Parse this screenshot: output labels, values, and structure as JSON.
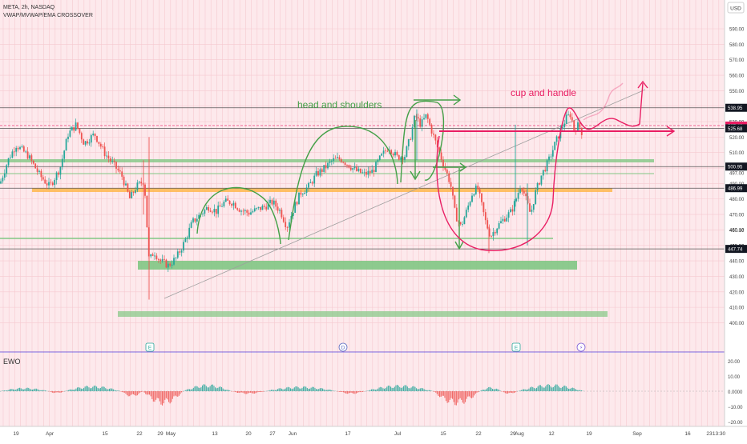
{
  "header": {
    "symbol_line": "META, 2h, NASDAQ",
    "indicator_line": "VWAP/MVWAP/EMA CROSSOVER",
    "currency": "USD"
  },
  "annotations": {
    "head_and_shoulders": "head and shoulders",
    "cup_and_handle": "cup and handle"
  },
  "indicator": {
    "name": "EWO",
    "axis_ticks": [
      "20.00",
      "10.00",
      "0.0000",
      "−10.00",
      "−20.00"
    ]
  },
  "colors": {
    "up": "#26a69a",
    "down": "#ef5350",
    "pen_green": "#43a047",
    "pen_red": "#e91e63",
    "zone_green": "#81c784",
    "zone_orange": "#ffb74d",
    "label_bg": "#131722"
  },
  "chart_data": {
    "type": "candlestick",
    "price_axis": {
      "ticks": [
        590,
        580,
        570,
        560,
        550,
        540,
        530,
        520,
        510,
        500,
        490,
        480,
        470,
        460,
        450,
        440,
        430,
        420,
        410,
        400
      ],
      "tick_labels": [
        "590.00",
        "580.00",
        "570.00",
        "560.00",
        "550.00",
        "540.00",
        "530.00",
        "520.00",
        "510.00",
        "500.00",
        "490.00",
        "480.00",
        "470.00",
        "460.00",
        "450.00",
        "440.00",
        "430.00",
        "420.00",
        "410.00",
        "400.00"
      ],
      "range": [
        395,
        600
      ]
    },
    "price_levels": [
      {
        "value": 538.95,
        "label": "538.95",
        "style": "dark"
      },
      {
        "value": 527.46,
        "label": "527.46",
        "style": "red"
      },
      {
        "value": 525.68,
        "label": "525.68",
        "style": "dark"
      },
      {
        "value": 500.95,
        "label": "500.95",
        "style": "dark"
      },
      {
        "value": 497.0,
        "label": "497.00",
        "style": "plain"
      },
      {
        "value": 486.99,
        "label": "486.99",
        "style": "dark"
      },
      {
        "value": 460.18,
        "label": "460.18",
        "style": "plain"
      },
      {
        "value": 449.9,
        "label": "449.90",
        "style": "plain"
      },
      {
        "value": 447.74,
        "label": "447.74",
        "style": "dark"
      }
    ],
    "x_axis": {
      "labels": [
        "19",
        "Apr",
        "15",
        "22",
        "29",
        "May",
        "13",
        "20",
        "27",
        "Jun",
        "17",
        "Jul",
        "15",
        "22",
        "29",
        "Aug",
        "12",
        "19",
        "Sep",
        "16",
        "23",
        "13:30"
      ]
    },
    "event_markers": [
      "E",
      "D",
      "E",
      "⚡"
    ],
    "price_path": [
      [
        0,
        490
      ],
      [
        10,
        505
      ],
      [
        20,
        515
      ],
      [
        35,
        508
      ],
      [
        50,
        495
      ],
      [
        62,
        488
      ],
      [
        75,
        500
      ],
      [
        85,
        522
      ],
      [
        95,
        528
      ],
      [
        105,
        516
      ],
      [
        118,
        522
      ],
      [
        130,
        510
      ],
      [
        142,
        502
      ],
      [
        152,
        495
      ],
      [
        162,
        480
      ],
      [
        170,
        488
      ],
      [
        180,
        492
      ],
      [
        186,
        440
      ],
      [
        192,
        446
      ],
      [
        200,
        440
      ],
      [
        210,
        437
      ],
      [
        220,
        442
      ],
      [
        230,
        452
      ],
      [
        240,
        465
      ],
      [
        250,
        470
      ],
      [
        260,
        475
      ],
      [
        270,
        472
      ],
      [
        280,
        478
      ],
      [
        290,
        478
      ],
      [
        300,
        473
      ],
      [
        310,
        471
      ],
      [
        320,
        473
      ],
      [
        330,
        475
      ],
      [
        340,
        478
      ],
      [
        350,
        472
      ],
      [
        358,
        462
      ],
      [
        368,
        476
      ],
      [
        375,
        484
      ],
      [
        385,
        488
      ],
      [
        395,
        496
      ],
      [
        405,
        500
      ],
      [
        415,
        505
      ],
      [
        425,
        506
      ],
      [
        435,
        502
      ],
      [
        445,
        498
      ],
      [
        455,
        496
      ],
      [
        465,
        498
      ],
      [
        475,
        507
      ],
      [
        485,
        514
      ],
      [
        495,
        507
      ],
      [
        505,
        508
      ],
      [
        512,
        520
      ],
      [
        518,
        534
      ],
      [
        525,
        528
      ],
      [
        532,
        534
      ],
      [
        540,
        522
      ],
      [
        548,
        510
      ],
      [
        555,
        500
      ],
      [
        562,
        490
      ],
      [
        568,
        470
      ],
      [
        575,
        462
      ],
      [
        582,
        472
      ],
      [
        590,
        485
      ],
      [
        596,
        487
      ],
      [
        600,
        478
      ],
      [
        606,
        465
      ],
      [
        612,
        456
      ],
      [
        620,
        462
      ],
      [
        630,
        468
      ],
      [
        638,
        472
      ],
      [
        644,
        480
      ],
      [
        650,
        490
      ],
      [
        656,
        480
      ],
      [
        662,
        470
      ],
      [
        668,
        484
      ],
      [
        676,
        496
      ],
      [
        684,
        504
      ],
      [
        692,
        515
      ],
      [
        700,
        525
      ],
      [
        706,
        532
      ],
      [
        712,
        535
      ],
      [
        716,
        525
      ],
      [
        722,
        528
      ],
      [
        726,
        523
      ]
    ],
    "ewo": {
      "segments": [
        {
          "from": 0,
          "to": 60,
          "amp": 2.5,
          "sign": 1
        },
        {
          "from": 60,
          "to": 80,
          "amp": 1.5,
          "sign": -1
        },
        {
          "from": 80,
          "to": 150,
          "amp": 4,
          "sign": 1
        },
        {
          "from": 150,
          "to": 178,
          "amp": 4,
          "sign": -1
        },
        {
          "from": 178,
          "to": 228,
          "amp": 10,
          "sign": -1
        },
        {
          "from": 228,
          "to": 288,
          "amp": 5,
          "sign": 1
        },
        {
          "from": 288,
          "to": 330,
          "amp": 2,
          "sign": -1
        },
        {
          "from": 330,
          "to": 420,
          "amp": 3.5,
          "sign": 1
        },
        {
          "from": 420,
          "to": 455,
          "amp": 2,
          "sign": -1
        },
        {
          "from": 455,
          "to": 540,
          "amp": 4.5,
          "sign": 1
        },
        {
          "from": 540,
          "to": 598,
          "amp": 10,
          "sign": -1
        },
        {
          "from": 598,
          "to": 625,
          "amp": 3,
          "sign": 1
        },
        {
          "from": 625,
          "to": 645,
          "amp": 2,
          "sign": -1
        },
        {
          "from": 645,
          "to": 728,
          "amp": 5,
          "sign": 1
        }
      ]
    }
  }
}
